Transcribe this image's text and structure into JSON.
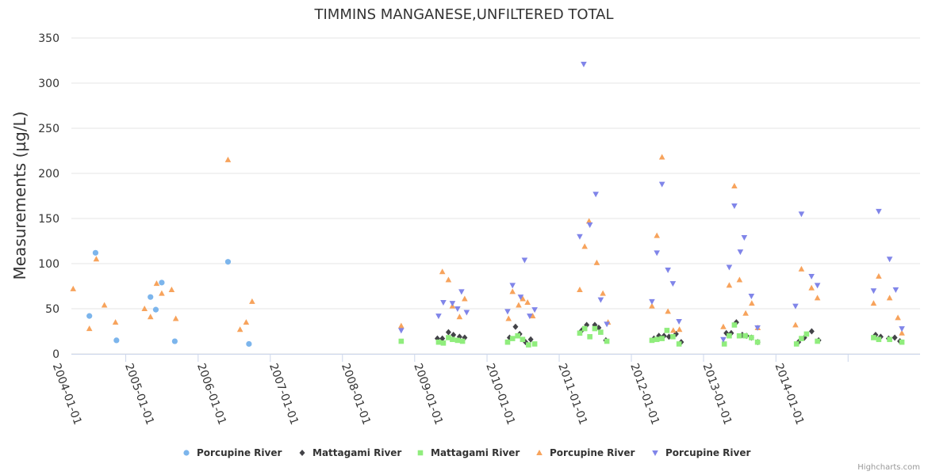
{
  "chart_data": {
    "type": "scatter",
    "title": "TIMMINS MANGANESE,UNFILTERED TOTAL",
    "ylabel": "Measurements (µg/L)",
    "xlabel": "",
    "ylim": [
      0,
      350
    ],
    "yticks": [
      0,
      50,
      100,
      150,
      200,
      250,
      300,
      350
    ],
    "xrange": [
      "2003-04-01",
      "2014-12-31"
    ],
    "xticks": [
      "2004-01-01",
      "2005-01-01",
      "2006-01-01",
      "2007-01-01",
      "2008-01-01",
      "2009-01-01",
      "2010-01-01",
      "2011-01-01",
      "2012-01-01",
      "2013-01-01",
      "2014-01-01"
    ],
    "grid": true,
    "legend_position": "bottom",
    "credits": "Highcharts.com",
    "series": [
      {
        "name": "Porcupine River",
        "marker": "circle",
        "color": "#7cb5ec",
        "points": [
          [
            "2003-07-01",
            42
          ],
          [
            "2003-08-01",
            112
          ],
          [
            "2003-11-15",
            15
          ],
          [
            "2004-05-05",
            63
          ],
          [
            "2004-06-01",
            49
          ],
          [
            "2004-07-01",
            79
          ],
          [
            "2004-09-05",
            14
          ],
          [
            "2005-06-01",
            102
          ],
          [
            "2005-09-15",
            11
          ]
        ]
      },
      {
        "name": "Mattagami River",
        "marker": "diamond",
        "color": "#434348",
        "points": [
          [
            "2008-04-25",
            17
          ],
          [
            "2008-05-20",
            17
          ],
          [
            "2008-06-20",
            24
          ],
          [
            "2008-07-15",
            21
          ],
          [
            "2008-08-15",
            19
          ],
          [
            "2008-09-10",
            18
          ],
          [
            "2009-04-25",
            18
          ],
          [
            "2009-05-25",
            30
          ],
          [
            "2009-06-15",
            22
          ],
          [
            "2009-07-15",
            13
          ],
          [
            "2009-08-10",
            16
          ],
          [
            "2010-04-25",
            26
          ],
          [
            "2010-05-20",
            32
          ],
          [
            "2010-06-30",
            32
          ],
          [
            "2010-07-20",
            29
          ],
          [
            "2010-08-25",
            15
          ],
          [
            "2011-04-25",
            17
          ],
          [
            "2011-05-20",
            20
          ],
          [
            "2011-06-15",
            20
          ],
          [
            "2011-07-10",
            19
          ],
          [
            "2011-08-15",
            22
          ],
          [
            "2011-09-10",
            13
          ],
          [
            "2012-04-25",
            23
          ],
          [
            "2012-05-20",
            23
          ],
          [
            "2012-06-15",
            35
          ],
          [
            "2012-07-15",
            21
          ],
          [
            "2012-08-05",
            20
          ],
          [
            "2012-08-30",
            18
          ],
          [
            "2012-10-01",
            13
          ],
          [
            "2013-04-25",
            13
          ],
          [
            "2013-05-25",
            18
          ],
          [
            "2013-07-01",
            25
          ],
          [
            "2013-08-05",
            15
          ],
          [
            "2014-05-20",
            21
          ],
          [
            "2014-06-15",
            19
          ],
          [
            "2014-07-25",
            17
          ],
          [
            "2014-08-25",
            18
          ],
          [
            "2014-09-20",
            14
          ]
        ]
      },
      {
        "name": "Mattagami River",
        "marker": "square",
        "color": "#90ed7d",
        "points": [
          [
            "2007-10-25",
            14
          ],
          [
            "2008-05-01",
            13
          ],
          [
            "2008-05-25",
            12
          ],
          [
            "2008-06-20",
            18
          ],
          [
            "2008-07-10",
            16
          ],
          [
            "2008-08-05",
            15
          ],
          [
            "2008-08-30",
            14
          ],
          [
            "2009-04-15",
            13
          ],
          [
            "2009-05-10",
            17
          ],
          [
            "2009-06-05",
            20
          ],
          [
            "2009-06-30",
            16
          ],
          [
            "2009-07-30",
            10
          ],
          [
            "2009-08-30",
            11
          ],
          [
            "2010-04-15",
            23
          ],
          [
            "2010-05-10",
            28
          ],
          [
            "2010-06-05",
            19
          ],
          [
            "2010-06-30",
            28
          ],
          [
            "2010-07-30",
            24
          ],
          [
            "2010-08-30",
            14
          ],
          [
            "2011-04-15",
            15
          ],
          [
            "2011-05-10",
            16
          ],
          [
            "2011-06-05",
            17
          ],
          [
            "2011-06-30",
            26
          ],
          [
            "2011-07-30",
            19
          ],
          [
            "2011-08-30",
            11
          ],
          [
            "2012-04-15",
            11
          ],
          [
            "2012-05-10",
            20
          ],
          [
            "2012-06-05",
            32
          ],
          [
            "2012-06-30",
            20
          ],
          [
            "2012-07-30",
            20
          ],
          [
            "2012-08-30",
            18
          ],
          [
            "2012-09-30",
            13
          ],
          [
            "2013-04-15",
            11
          ],
          [
            "2013-05-10",
            17
          ],
          [
            "2013-06-05",
            22
          ],
          [
            "2013-07-30",
            14
          ],
          [
            "2014-05-10",
            18
          ],
          [
            "2014-06-05",
            16
          ],
          [
            "2014-07-30",
            16
          ],
          [
            "2014-09-30",
            13
          ]
        ]
      },
      {
        "name": "Porcupine River",
        "marker": "triangle",
        "color": "#f7a35c",
        "points": [
          [
            "2003-04-10",
            72
          ],
          [
            "2003-07-01",
            28
          ],
          [
            "2003-08-05",
            105
          ],
          [
            "2003-09-15",
            54
          ],
          [
            "2003-11-10",
            35
          ],
          [
            "2004-04-05",
            50
          ],
          [
            "2004-05-05",
            41
          ],
          [
            "2004-06-05",
            78
          ],
          [
            "2004-07-01",
            67
          ],
          [
            "2004-08-20",
            71
          ],
          [
            "2004-09-10",
            39
          ],
          [
            "2005-06-01",
            215
          ],
          [
            "2005-08-01",
            27
          ],
          [
            "2005-09-01",
            35
          ],
          [
            "2005-10-01",
            58
          ],
          [
            "2007-10-25",
            31
          ],
          [
            "2008-05-20",
            91
          ],
          [
            "2008-06-20",
            82
          ],
          [
            "2008-07-10",
            53
          ],
          [
            "2008-08-15",
            41
          ],
          [
            "2008-09-10",
            61
          ],
          [
            "2009-04-20",
            39
          ],
          [
            "2009-05-10",
            69
          ],
          [
            "2009-06-10",
            54
          ],
          [
            "2009-07-01",
            61
          ],
          [
            "2009-07-25",
            57
          ],
          [
            "2009-08-20",
            42
          ],
          [
            "2010-04-15",
            71
          ],
          [
            "2010-05-10",
            119
          ],
          [
            "2010-06-01",
            147
          ],
          [
            "2010-07-10",
            101
          ],
          [
            "2010-08-10",
            67
          ],
          [
            "2010-09-05",
            35
          ],
          [
            "2011-04-15",
            53
          ],
          [
            "2011-05-10",
            131
          ],
          [
            "2011-06-05",
            218
          ],
          [
            "2011-07-05",
            47
          ],
          [
            "2011-08-01",
            26
          ],
          [
            "2011-09-01",
            27
          ],
          [
            "2012-04-10",
            30
          ],
          [
            "2012-05-10",
            76
          ],
          [
            "2012-06-05",
            186
          ],
          [
            "2012-07-01",
            82
          ],
          [
            "2012-08-01",
            45
          ],
          [
            "2012-09-01",
            56
          ],
          [
            "2012-10-01",
            29
          ],
          [
            "2013-04-10",
            32
          ],
          [
            "2013-05-10",
            94
          ],
          [
            "2013-06-30",
            73
          ],
          [
            "2013-07-30",
            62
          ],
          [
            "2014-05-10",
            56
          ],
          [
            "2014-06-05",
            86
          ],
          [
            "2014-07-30",
            62
          ],
          [
            "2014-09-10",
            40
          ],
          [
            "2014-09-30",
            23
          ]
        ]
      },
      {
        "name": "Porcupine River",
        "marker": "triangle-down",
        "color": "#8085e9",
        "points": [
          [
            "2007-10-25",
            26
          ],
          [
            "2008-05-01",
            42
          ],
          [
            "2008-05-25",
            57
          ],
          [
            "2008-07-10",
            56
          ],
          [
            "2008-08-05",
            50
          ],
          [
            "2008-08-25",
            69
          ],
          [
            "2008-09-20",
            46
          ],
          [
            "2009-04-15",
            47
          ],
          [
            "2009-05-10",
            76
          ],
          [
            "2009-06-20",
            63
          ],
          [
            "2009-07-10",
            104
          ],
          [
            "2009-08-05",
            42
          ],
          [
            "2009-08-30",
            49
          ],
          [
            "2010-04-15",
            130
          ],
          [
            "2010-05-05",
            321
          ],
          [
            "2010-06-05",
            143
          ],
          [
            "2010-07-05",
            177
          ],
          [
            "2010-07-30",
            60
          ],
          [
            "2010-08-30",
            33
          ],
          [
            "2011-04-15",
            58
          ],
          [
            "2011-05-10",
            112
          ],
          [
            "2011-06-05",
            188
          ],
          [
            "2011-07-05",
            93
          ],
          [
            "2011-07-30",
            78
          ],
          [
            "2011-08-30",
            36
          ],
          [
            "2012-04-10",
            16
          ],
          [
            "2012-05-10",
            96
          ],
          [
            "2012-06-05",
            164
          ],
          [
            "2012-07-05",
            113
          ],
          [
            "2012-07-25",
            129
          ],
          [
            "2012-08-30",
            64
          ],
          [
            "2012-09-30",
            29
          ],
          [
            "2013-04-10",
            53
          ],
          [
            "2013-05-10",
            155
          ],
          [
            "2013-06-30",
            86
          ],
          [
            "2013-07-30",
            76
          ],
          [
            "2014-05-10",
            70
          ],
          [
            "2014-06-05",
            158
          ],
          [
            "2014-07-30",
            105
          ],
          [
            "2014-08-30",
            71
          ],
          [
            "2014-09-30",
            28
          ]
        ]
      }
    ]
  }
}
